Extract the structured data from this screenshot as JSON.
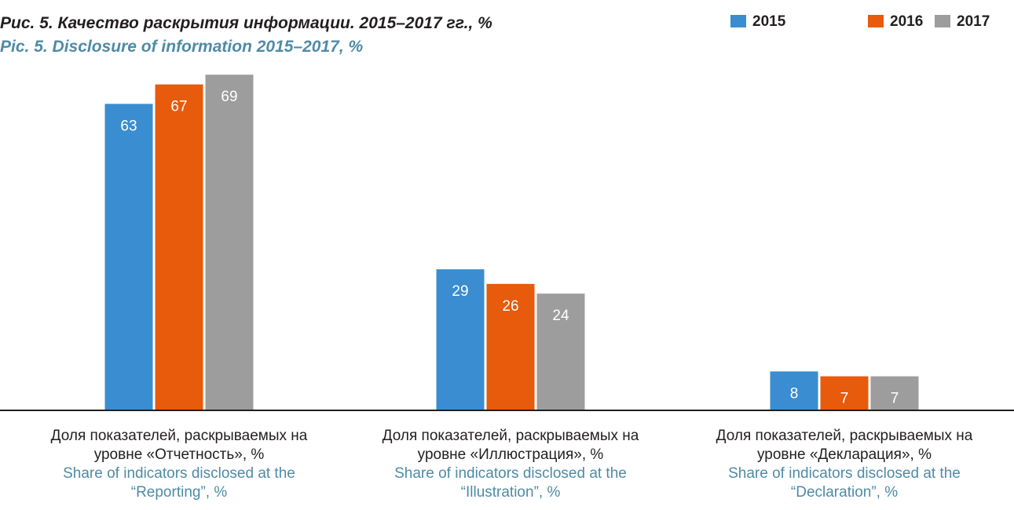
{
  "chart_data": {
    "type": "bar",
    "title": "Рис. 5. Качество раскрытия информации. 2015–2017 гг., %",
    "subtitle": "Pic. 5. Disclosure of information 2015–2017, %",
    "categories": [
      "Доля показателей, раскрываемых на уровне «Отчетность», %",
      "Доля показателей, раскрываемых на уровне «Иллюстрация», %",
      "Доля показателей, раскрываемых на уровне «Декларация», %"
    ],
    "categories_en": [
      "Share of indicators disclosed at the “Reporting”, %",
      "Share of indicators disclosed at the “Illustration”, %",
      "Share of indicators disclosed at the “Declaration”, %"
    ],
    "series": [
      {
        "name": "2015",
        "color": "#3a8dd0",
        "values": [
          63,
          29,
          8
        ]
      },
      {
        "name": "2016",
        "color": "#e85a0c",
        "values": [
          67,
          26,
          7
        ]
      },
      {
        "name": "2017",
        "color": "#9d9d9d",
        "values": [
          69,
          24,
          7
        ]
      }
    ],
    "legend": "top-right"
  }
}
